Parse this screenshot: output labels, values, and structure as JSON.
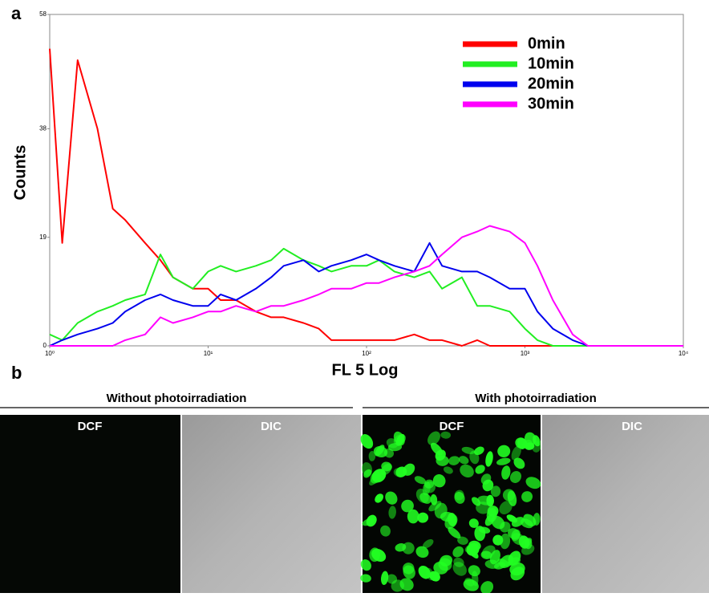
{
  "panel_labels": [
    "a",
    "b"
  ],
  "chart_data": {
    "type": "line",
    "x_label": "FL 5 Log",
    "y_label": "Counts",
    "x_scale": "log",
    "xlim": [
      1,
      10000
    ],
    "xticks": [
      {
        "value": 1,
        "label": "10⁰"
      },
      {
        "value": 10,
        "label": "10¹"
      },
      {
        "value": 100,
        "label": "10²"
      },
      {
        "value": 1000,
        "label": "10³"
      },
      {
        "value": 10000,
        "label": "10⁴"
      }
    ],
    "ylim": [
      0,
      58
    ],
    "yticks": [
      0,
      19,
      38,
      58
    ],
    "legend": "upper right",
    "x": [
      1,
      1.2,
      1.5,
      2,
      2.5,
      3,
      4,
      5,
      6,
      8,
      10,
      12,
      15,
      20,
      25,
      30,
      40,
      50,
      60,
      80,
      100,
      120,
      150,
      200,
      250,
      300,
      400,
      500,
      600,
      800,
      1000,
      1200,
      1500,
      2000,
      2500,
      10000
    ],
    "series": [
      {
        "name": "0min",
        "color": "#ff0000",
        "values": [
          52,
          18,
          50,
          38,
          24,
          22,
          18,
          15,
          12,
          10,
          10,
          8,
          8,
          6,
          5,
          5,
          4,
          3,
          1,
          1,
          1,
          1,
          1,
          2,
          1,
          1,
          0,
          1,
          0,
          0,
          0,
          0,
          0,
          0,
          0,
          0
        ]
      },
      {
        "name": "10min",
        "color": "#22ee22",
        "values": [
          2,
          1,
          4,
          6,
          7,
          8,
          9,
          16,
          12,
          10,
          13,
          14,
          13,
          14,
          15,
          17,
          15,
          14,
          13,
          14,
          14,
          15,
          13,
          12,
          13,
          10,
          12,
          7,
          7,
          6,
          3,
          1,
          0,
          0,
          0,
          0
        ]
      },
      {
        "name": "20min",
        "color": "#0000ee",
        "values": [
          0,
          1,
          2,
          3,
          4,
          6,
          8,
          9,
          8,
          7,
          7,
          9,
          8,
          10,
          12,
          14,
          15,
          13,
          14,
          15,
          16,
          15,
          14,
          13,
          18,
          14,
          13,
          13,
          12,
          10,
          10,
          6,
          3,
          1,
          0,
          0
        ]
      },
      {
        "name": "30min",
        "color": "#ff00ff",
        "values": [
          0,
          0,
          0,
          0,
          0,
          1,
          2,
          5,
          4,
          5,
          6,
          6,
          7,
          6,
          7,
          7,
          8,
          9,
          10,
          10,
          11,
          11,
          12,
          13,
          14,
          16,
          19,
          20,
          21,
          20,
          18,
          14,
          8,
          2,
          0,
          0
        ]
      }
    ]
  },
  "panel_b": {
    "conditions": [
      "Without photoirradiation",
      "With photoirradiation"
    ],
    "images": [
      "DCF",
      "DIC",
      "DCF",
      "DIC"
    ]
  }
}
